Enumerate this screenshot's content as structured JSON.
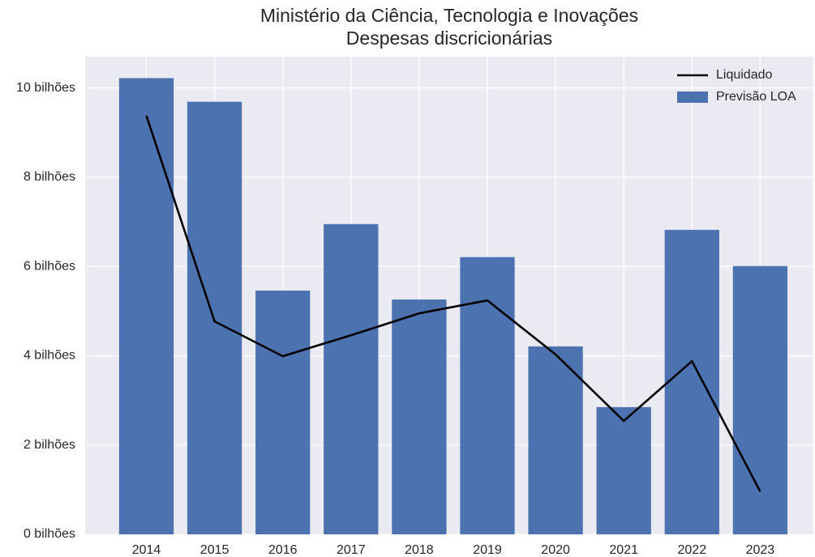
{
  "chart_data": {
    "type": "bar",
    "title": "Ministério da Ciência, Tecnologia e Inovações",
    "subtitle": "Despesas discricionárias",
    "categories": [
      "2014",
      "2015",
      "2016",
      "2017",
      "2018",
      "2019",
      "2020",
      "2021",
      "2022",
      "2023"
    ],
    "series": [
      {
        "name": "Liquidado",
        "type": "line",
        "color": "#000000",
        "values": [
          9.38,
          4.77,
          3.99,
          4.46,
          4.95,
          5.24,
          4.03,
          2.54,
          3.88,
          0.96
        ]
      },
      {
        "name": "Previsão LOA",
        "type": "bar",
        "color": "#4c72b0",
        "values": [
          10.22,
          9.69,
          5.46,
          6.95,
          5.26,
          6.21,
          4.21,
          2.85,
          6.82,
          6.01
        ]
      }
    ],
    "ylim": [
      0,
      10.7
    ],
    "yticks": [
      {
        "value": 0,
        "label": "0 bilhões"
      },
      {
        "value": 2,
        "label": "2 bilhões"
      },
      {
        "value": 4,
        "label": "4 bilhões"
      },
      {
        "value": 6,
        "label": "6 bilhões"
      },
      {
        "value": 8,
        "label": "8 bilhões"
      },
      {
        "value": 10,
        "label": "10 bilhões"
      }
    ],
    "grid": true,
    "legend": "upper right"
  }
}
